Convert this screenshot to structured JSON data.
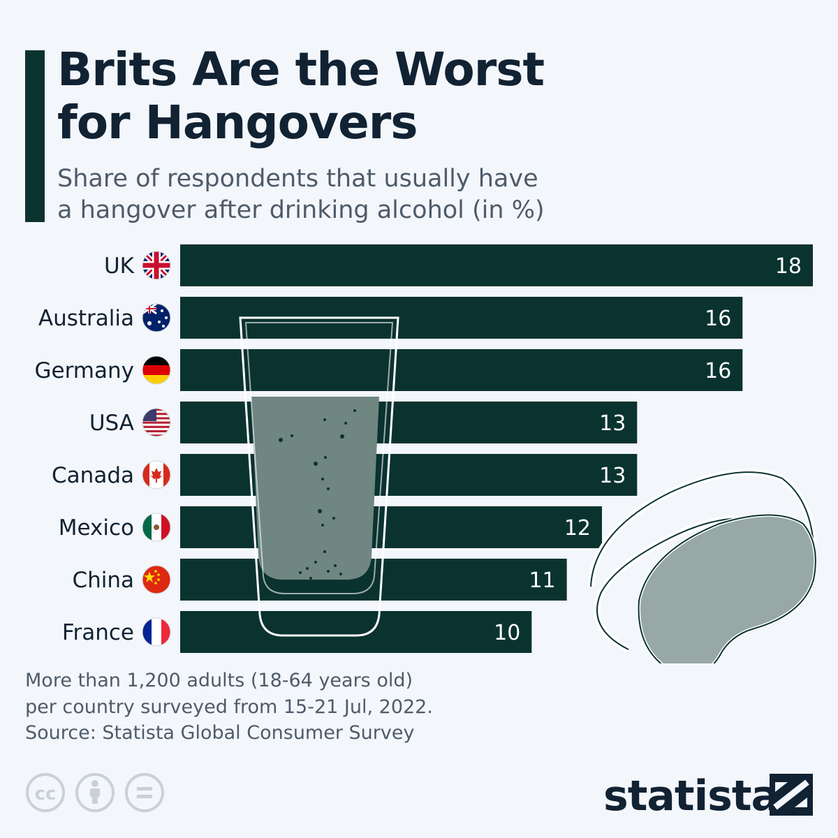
{
  "header": {
    "title_line1": "Brits Are the Worst",
    "title_line2": "for Hangovers",
    "subtitle_line1": "Share of respondents that usually have",
    "subtitle_line2": "a hangover after drinking alcohol (in %)"
  },
  "chart_data": {
    "type": "bar",
    "orientation": "horizontal",
    "categories": [
      "UK",
      "Australia",
      "Germany",
      "USA",
      "Canada",
      "Mexico",
      "China",
      "France"
    ],
    "values": [
      18,
      16,
      16,
      13,
      13,
      12,
      11,
      10
    ],
    "title": "Brits Are the Worst for Hangovers",
    "xlabel": "",
    "ylabel": "",
    "xlim": [
      0,
      18
    ],
    "grid": false,
    "legend": "none",
    "bar_color": "#0a3330",
    "label_color": "#ffffff"
  },
  "footer": {
    "note_line1": "More than 1,200 adults (18-64 years old)",
    "note_line2": "per country surveyed from 15-21 Jul, 2022.",
    "source": "Source: Statista Global Consumer Survey",
    "logo_text": "statista"
  },
  "icons": [
    "cc-icon",
    "attribution-icon",
    "no-derivatives-icon",
    "statista-logo-icon"
  ],
  "colors": {
    "background": "#f3f6fa",
    "dark_green": "#0a3330",
    "text_dark": "#112233",
    "text_gray": "#4e5b6a"
  }
}
